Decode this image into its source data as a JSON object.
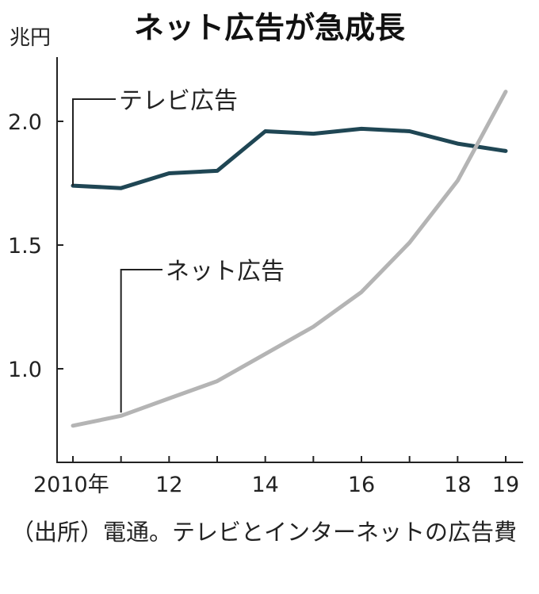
{
  "chart_data": {
    "type": "line",
    "title": "ネット広告が急成長",
    "ylabel": "兆円",
    "xlabel": "",
    "ylim": [
      0.6,
      2.3
    ],
    "xlim": [
      2010,
      2019
    ],
    "x": [
      2010,
      2011,
      2012,
      2013,
      2014,
      2015,
      2016,
      2017,
      2018,
      2019
    ],
    "x_tick_values": [
      2010,
      2012,
      2014,
      2016,
      2018,
      2019
    ],
    "x_tick_labels": [
      "2010年",
      "12",
      "14",
      "16",
      "18",
      "19"
    ],
    "y_ticks": [
      1.0,
      1.5,
      2.0
    ],
    "y_tick_labels": [
      "1.0",
      "1.5",
      "2.0"
    ],
    "grid": false,
    "series": [
      {
        "name": "テレビ広告",
        "color": "#1f4654",
        "values": [
          1.74,
          1.73,
          1.79,
          1.8,
          1.96,
          1.95,
          1.97,
          1.96,
          1.91,
          1.88
        ]
      },
      {
        "name": "ネット広告",
        "color": "#b4b4b4",
        "values": [
          0.77,
          0.81,
          0.88,
          0.95,
          1.06,
          1.17,
          1.31,
          1.51,
          1.76,
          2.12
        ]
      }
    ]
  },
  "source": "（出所）電通。テレビとインターネットの広告費"
}
